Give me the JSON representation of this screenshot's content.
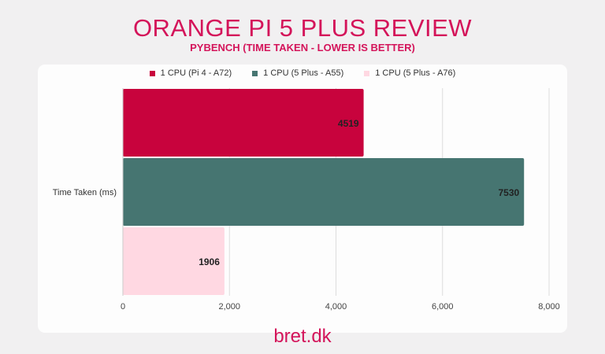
{
  "header": {
    "title": "ORANGE PI 5 PLUS REVIEW",
    "subtitle": "PYBENCH (TIME TAKEN - LOWER IS BETTER)"
  },
  "footer": {
    "brand": "bret.dk"
  },
  "chart_data": {
    "type": "bar",
    "orientation": "horizontal",
    "categories": [
      "Time Taken (ms)"
    ],
    "series": [
      {
        "name": "1 CPU (Pi 4 - A72)",
        "values": [
          4519
        ],
        "color": "#c8033d"
      },
      {
        "name": "1 CPU (5 Plus - A55)",
        "values": [
          7530
        ],
        "color": "#467571"
      },
      {
        "name": "1 CPU (5 Plus - A76)",
        "values": [
          1906
        ],
        "color": "#ffd8e2"
      }
    ],
    "xlim": [
      0,
      8000
    ],
    "xticks": [
      "0",
      "2,000",
      "4,000",
      "6,000",
      "8,000"
    ],
    "grid": true,
    "legend": "top"
  }
}
